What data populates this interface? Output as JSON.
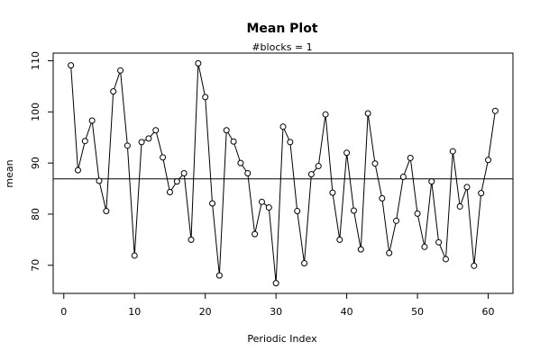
{
  "chart_data": {
    "type": "line",
    "title": "Mean Plot",
    "subtitle": "#blocks =  1",
    "xlabel": "Periodic Index",
    "ylabel": "mean",
    "xlim": [
      -1.5,
      63.5
    ],
    "ylim": [
      64.5,
      111.5
    ],
    "xticks": [
      0,
      10,
      20,
      30,
      40,
      50,
      60
    ],
    "yticks": [
      70,
      80,
      90,
      100,
      110
    ],
    "xtick_labels": [
      "0",
      "10",
      "20",
      "30",
      "40",
      "50",
      "60"
    ],
    "ytick_labels": [
      "70",
      "80",
      "90",
      "100",
      "110"
    ],
    "reference_line": 86.9,
    "grid": false,
    "line_style": "line-with-open-circles",
    "series": [
      {
        "x": [
          1,
          2,
          3,
          4,
          5,
          6,
          7,
          8,
          9,
          10,
          11,
          12,
          13,
          14,
          15,
          16,
          17,
          18,
          19,
          20,
          21,
          22,
          23,
          24,
          25,
          26,
          27,
          28,
          29,
          30,
          31,
          32,
          33,
          34,
          35,
          36,
          37,
          38,
          39,
          40,
          41,
          42,
          43,
          44,
          45,
          46,
          47,
          48,
          49,
          50,
          51,
          52,
          53,
          54,
          55,
          56,
          57,
          58,
          59,
          60,
          61
        ],
        "values": [
          109.1,
          88.6,
          94.3,
          98.3,
          86.5,
          80.6,
          104.0,
          108.1,
          93.4,
          71.9,
          94.1,
          94.8,
          96.4,
          91.1,
          84.3,
          86.4,
          88.0,
          75.0,
          109.5,
          102.9,
          82.1,
          68.0,
          96.4,
          94.2,
          90.0,
          88.0,
          76.1,
          82.4,
          81.3,
          66.5,
          97.1,
          94.1,
          80.6,
          70.4,
          87.8,
          89.4,
          99.5,
          84.2,
          75.0,
          92.0,
          80.7,
          73.1,
          99.7,
          89.9,
          83.1,
          72.4,
          78.7,
          87.3,
          91.0,
          80.1,
          73.6,
          86.4,
          74.5,
          71.2,
          92.3,
          81.5,
          85.3,
          69.9,
          84.1,
          90.6,
          100.2
        ]
      }
    ]
  }
}
